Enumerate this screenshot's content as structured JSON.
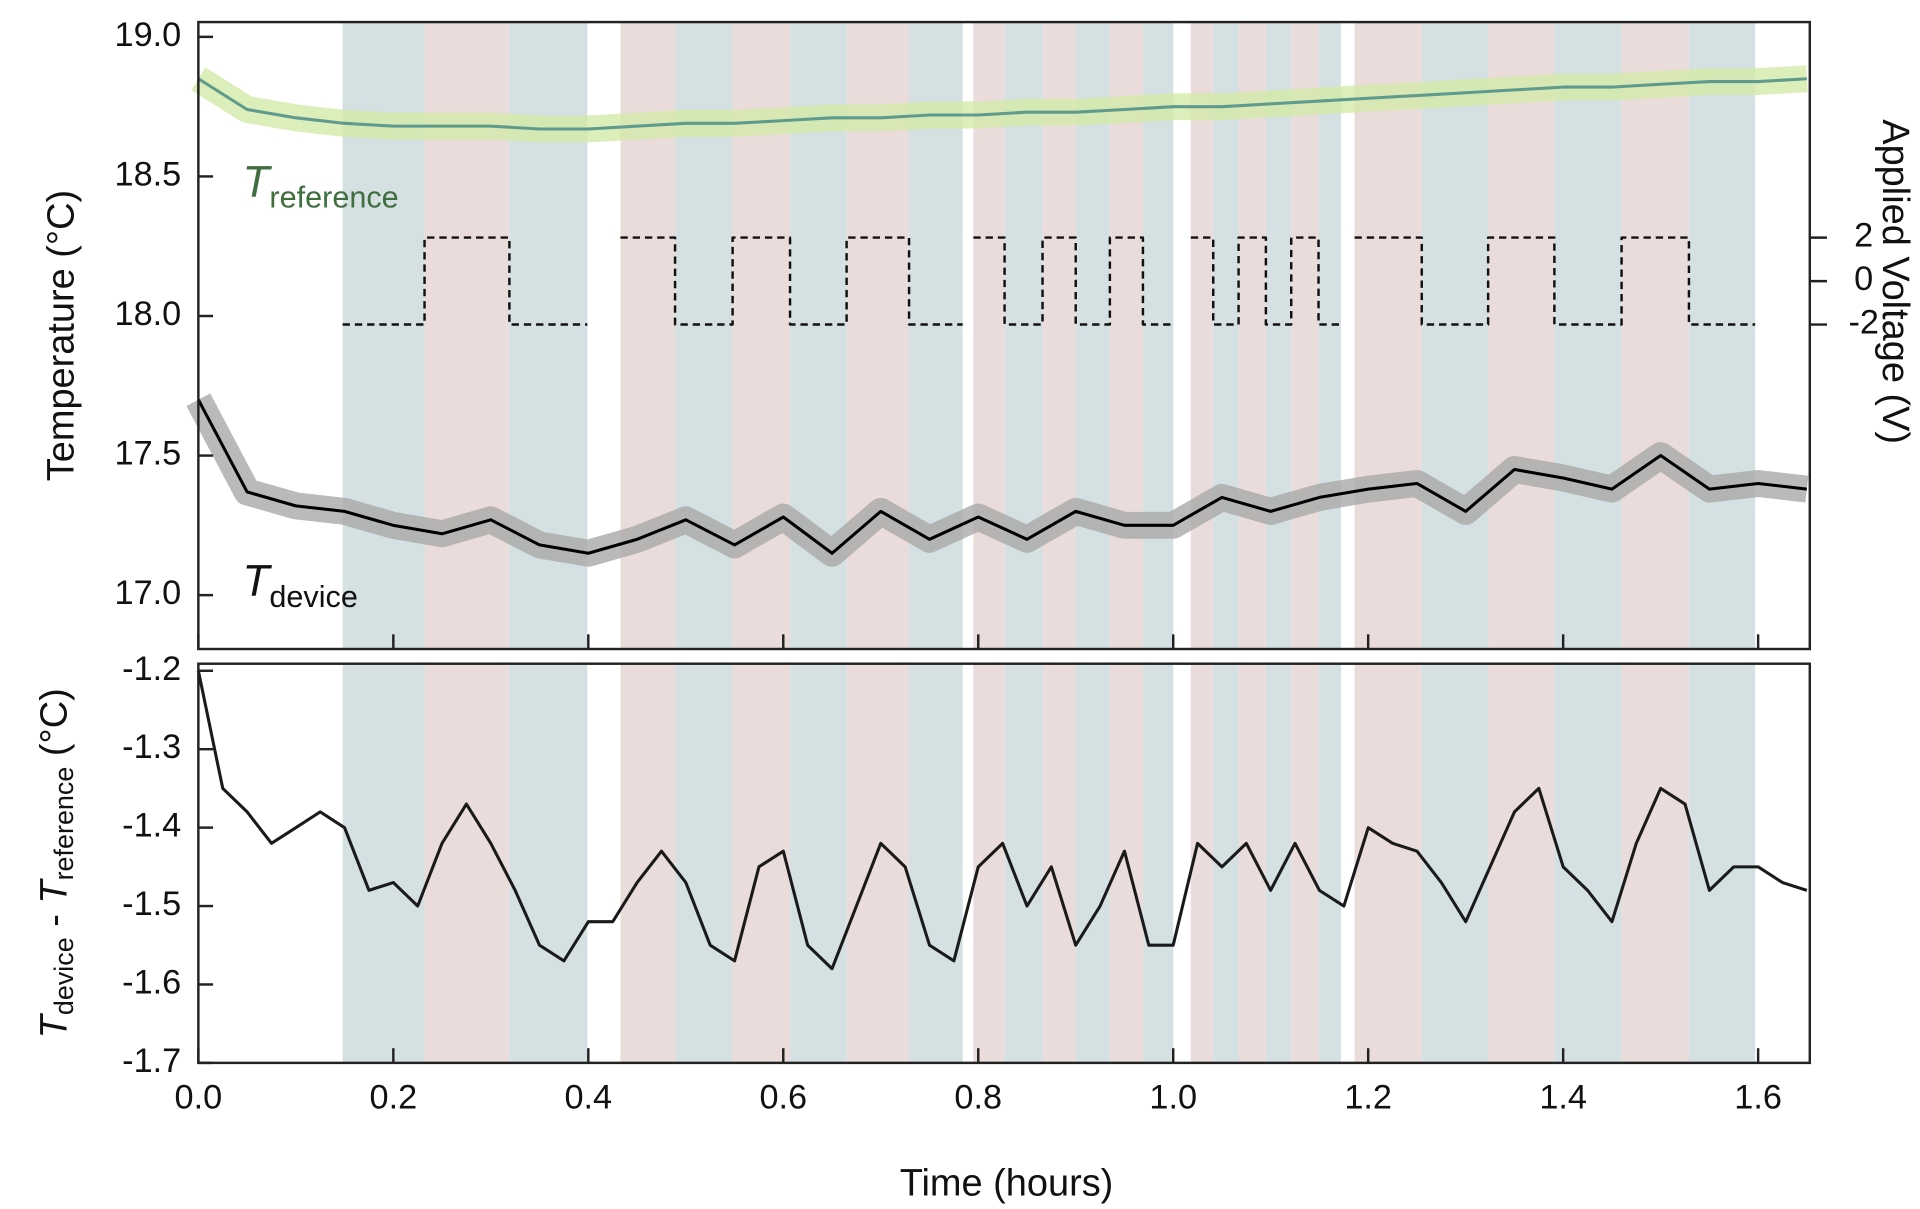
{
  "chart_data": [
    {
      "type": "line",
      "xlim": [
        0,
        1.653
      ],
      "xticks": [
        0,
        0.2,
        0.4,
        0.6,
        0.8,
        1,
        1.2,
        1.4,
        1.6
      ],
      "ylim": [
        16.807,
        19.053
      ],
      "yticks": [
        {
          "value": 17,
          "label": "17.0"
        },
        17.5,
        {
          "value": 18,
          "label": "18.0"
        },
        18.5,
        {
          "value": 19,
          "label": "19.0"
        }
      ],
      "y_label": "Temperature (°C)",
      "y2lim": [
        -16.93,
        11.92
      ],
      "y2ticks": [
        -2,
        0,
        2
      ],
      "y2_label": "Applied Voltage (V)",
      "series": [
        {
          "label": {
            "main": "T",
            "sub": "reference"
          },
          "color": "#5f9b8c",
          "band_color": "#d3eaa9",
          "label_color": "#3f6e3f",
          "x": [
            0,
            0.05,
            0.1,
            0.15,
            0.2,
            0.25,
            0.3,
            0.35,
            0.4,
            0.45,
            0.5,
            0.55,
            0.6,
            0.65,
            0.7,
            0.75,
            0.8,
            0.85,
            0.9,
            0.95,
            1,
            1.05,
            1.1,
            1.15,
            1.2,
            1.25,
            1.3,
            1.35,
            1.4,
            1.45,
            1.5,
            1.55,
            1.6,
            1.65
          ],
          "values": [
            18.85,
            18.74,
            18.71,
            18.69,
            18.68,
            18.68,
            18.68,
            18.67,
            18.67,
            18.68,
            18.69,
            18.69,
            18.7,
            18.71,
            18.71,
            18.72,
            18.72,
            18.73,
            18.73,
            18.74,
            18.75,
            18.75,
            18.76,
            18.77,
            18.78,
            18.79,
            18.8,
            18.81,
            18.82,
            18.82,
            18.83,
            18.84,
            18.84,
            18.85
          ]
        },
        {
          "label": {
            "main": "T",
            "sub": "device"
          },
          "color": "#000000",
          "band_color": "#a9a9a9",
          "label_color": "#111111",
          "x": [
            0,
            0.05,
            0.1,
            0.15,
            0.2,
            0.25,
            0.3,
            0.35,
            0.4,
            0.45,
            0.5,
            0.55,
            0.6,
            0.65,
            0.7,
            0.75,
            0.8,
            0.85,
            0.9,
            0.95,
            1,
            1.05,
            1.1,
            1.15,
            1.2,
            1.25,
            1.3,
            1.35,
            1.4,
            1.45,
            1.5,
            1.55,
            1.6,
            1.65
          ],
          "values": [
            17.7,
            17.37,
            17.32,
            17.3,
            17.25,
            17.22,
            17.27,
            17.18,
            17.15,
            17.2,
            17.27,
            17.18,
            17.28,
            17.15,
            17.3,
            17.2,
            17.28,
            17.2,
            17.3,
            17.25,
            17.25,
            17.35,
            17.3,
            17.35,
            17.38,
            17.4,
            17.3,
            17.45,
            17.42,
            17.38,
            17.5,
            17.38,
            17.4,
            17.38
          ]
        },
        {
          "axis": "y2",
          "dashed": true,
          "color": "#111111",
          "shade_colors": {
            "positive": "#eadcda",
            "negative": "#d4e0e2"
          },
          "x": [
            0.148,
            0.232,
            0.232,
            0.319,
            0.319,
            0.399,
            0.399,
            0.433,
            0.489,
            0.489,
            0.548,
            0.548,
            0.607,
            0.607,
            0.665,
            0.665,
            0.729,
            0.729,
            0.784,
            0.784,
            0.795,
            0.827,
            0.827,
            0.866,
            0.866,
            0.9,
            0.9,
            0.935,
            0.935,
            0.969,
            0.969,
            1,
            1,
            1.018,
            1.041,
            1.041,
            1.067,
            1.067,
            1.095,
            1.095,
            1.121,
            1.121,
            1.149,
            1.149,
            1.172,
            1.172,
            1.186,
            1.255,
            1.255,
            1.323,
            1.323,
            1.391,
            1.391,
            1.46,
            1.46,
            1.529,
            1.529,
            1.597
          ],
          "values": [
            -2,
            -2,
            2,
            2,
            -2,
            -2,
            null,
            2,
            2,
            -2,
            -2,
            2,
            2,
            -2,
            -2,
            2,
            2,
            -2,
            -2,
            null,
            2,
            2,
            -2,
            -2,
            2,
            2,
            -2,
            -2,
            2,
            2,
            -2,
            -2,
            null,
            2,
            2,
            -2,
            -2,
            2,
            2,
            -2,
            -2,
            2,
            2,
            -2,
            -2,
            null,
            2,
            2,
            -2,
            -2,
            2,
            2,
            -2,
            -2,
            2,
            2,
            -2,
            -2
          ]
        }
      ]
    },
    {
      "type": "line",
      "xlim": [
        0,
        1.653
      ],
      "xticks": [
        {
          "value": 0,
          "label": "0.0"
        },
        0.2,
        0.4,
        0.6,
        0.8,
        {
          "value": 1,
          "label": "1.0"
        },
        1.2,
        1.4,
        1.6
      ],
      "x_label": "Time (hours)",
      "ylim": [
        -1.7,
        -1.191
      ],
      "yticks": [
        -1.7,
        -1.6,
        -1.5,
        -1.4,
        -1.3,
        -1.2
      ],
      "y_label": {
        "t1": "T",
        "s1": "device",
        "mid": " - ",
        "t2": "T",
        "s2": "reference",
        "unit": " (°C)"
      },
      "series": [
        {
          "color": "#1a1a1a",
          "x": [
            0,
            0.025,
            0.05,
            0.075,
            0.1,
            0.125,
            0.15,
            0.175,
            0.2,
            0.225,
            0.25,
            0.275,
            0.3,
            0.325,
            0.35,
            0.375,
            0.4,
            0.425,
            0.45,
            0.475,
            0.5,
            0.525,
            0.55,
            0.575,
            0.6,
            0.625,
            0.65,
            0.675,
            0.7,
            0.725,
            0.75,
            0.775,
            0.8,
            0.825,
            0.85,
            0.875,
            0.9,
            0.925,
            0.95,
            0.975,
            1,
            1.025,
            1.05,
            1.075,
            1.1,
            1.125,
            1.15,
            1.175,
            1.2,
            1.225,
            1.25,
            1.275,
            1.3,
            1.325,
            1.35,
            1.375,
            1.4,
            1.425,
            1.45,
            1.475,
            1.5,
            1.525,
            1.55,
            1.575,
            1.6,
            1.625,
            1.65
          ],
          "values": [
            -1.2,
            -1.35,
            -1.38,
            -1.42,
            -1.4,
            -1.38,
            -1.4,
            -1.48,
            -1.47,
            -1.5,
            -1.42,
            -1.37,
            -1.42,
            -1.48,
            -1.55,
            -1.57,
            -1.52,
            -1.52,
            -1.47,
            -1.43,
            -1.47,
            -1.55,
            -1.57,
            -1.45,
            -1.43,
            -1.55,
            -1.58,
            -1.5,
            -1.42,
            -1.45,
            -1.55,
            -1.57,
            -1.45,
            -1.42,
            -1.5,
            -1.45,
            -1.55,
            -1.5,
            -1.43,
            -1.55,
            -1.55,
            -1.42,
            -1.45,
            -1.42,
            -1.48,
            -1.42,
            -1.48,
            -1.5,
            -1.4,
            -1.42,
            -1.43,
            -1.47,
            -1.52,
            -1.45,
            -1.38,
            -1.35,
            -1.45,
            -1.48,
            -1.52,
            -1.42,
            -1.35,
            -1.37,
            -1.48,
            -1.45,
            -1.45,
            -1.47,
            -1.48
          ]
        }
      ]
    }
  ]
}
